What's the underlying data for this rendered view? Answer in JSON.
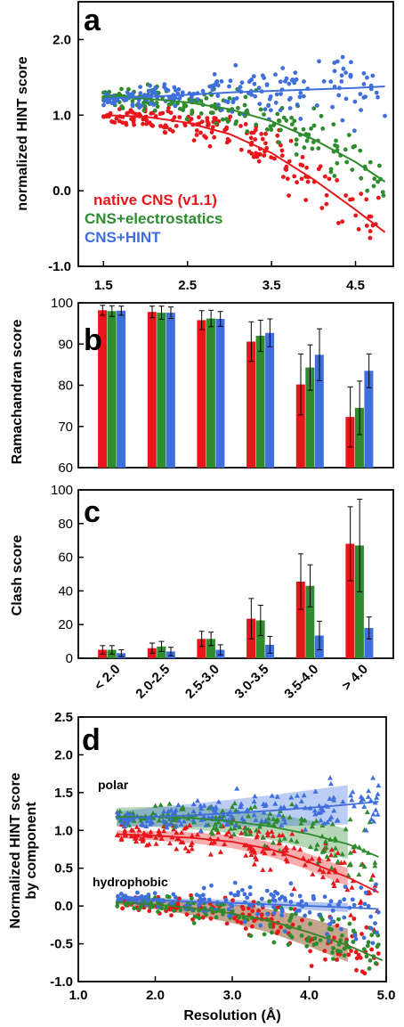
{
  "colors": {
    "native": "#e8161b",
    "electro": "#2e8b2e",
    "hint": "#3f6fdc"
  },
  "chart_data": [
    {
      "id": "a",
      "type": "scatter",
      "panel_label": "a",
      "ylabel": "normalized HINT score",
      "xlim": [
        1.2,
        4.95
      ],
      "ylim": [
        -1.0,
        2.5
      ],
      "xticks": [
        "1.5",
        "2.5",
        "3.5",
        "4.5"
      ],
      "yticks": [
        "-1.0",
        "0.0",
        "1.0",
        "2.0"
      ],
      "legend_position": "bottom-left",
      "series": [
        {
          "name": "native CNS (v1.1)",
          "color": "#e8161b",
          "fit": [
            [
              1.5,
              1.0
            ],
            [
              2.0,
              0.98
            ],
            [
              2.5,
              0.9
            ],
            [
              3.0,
              0.75
            ],
            [
              3.5,
              0.5
            ],
            [
              4.0,
              0.15
            ],
            [
              4.5,
              -0.25
            ],
            [
              4.85,
              -0.55
            ]
          ]
        },
        {
          "name": "CNS+electrostatics",
          "color": "#2e8b2e",
          "fit": [
            [
              1.5,
              1.25
            ],
            [
              2.0,
              1.22
            ],
            [
              2.5,
              1.17
            ],
            [
              3.0,
              1.08
            ],
            [
              3.5,
              0.92
            ],
            [
              4.0,
              0.68
            ],
            [
              4.5,
              0.38
            ],
            [
              4.85,
              0.12
            ]
          ]
        },
        {
          "name": "CNS+HINT",
          "color": "#3f6fdc",
          "fit": [
            [
              1.5,
              1.22
            ],
            [
              2.0,
              1.24
            ],
            [
              2.5,
              1.27
            ],
            [
              3.0,
              1.3
            ],
            [
              3.5,
              1.32
            ],
            [
              4.0,
              1.34
            ],
            [
              4.5,
              1.36
            ],
            [
              4.85,
              1.38
            ]
          ]
        }
      ]
    },
    {
      "id": "b",
      "type": "bar",
      "panel_label": "b",
      "ylabel": "Ramachandran score",
      "ylim": [
        60,
        100
      ],
      "yticks": [
        "60",
        "70",
        "80",
        "90",
        "100"
      ],
      "categories": [
        "< 2.0",
        "2.0-2.5",
        "2.5-3.0",
        "3.0-3.5",
        "3.5-4.0",
        "> 4.0"
      ],
      "series": [
        {
          "name": "native CNS (v1.1)",
          "color": "#e8161b",
          "values": [
            98.2,
            97.8,
            95.8,
            90.6,
            80.2,
            72.3
          ],
          "errors": [
            1.2,
            1.4,
            2.3,
            4.8,
            7.4,
            7.3
          ]
        },
        {
          "name": "CNS+electrostatics",
          "color": "#2e8b2e",
          "values": [
            98.0,
            97.6,
            96.2,
            92.0,
            84.3,
            74.5
          ],
          "errors": [
            1.3,
            1.6,
            2.0,
            3.8,
            5.5,
            6.5
          ]
        },
        {
          "name": "CNS+HINT",
          "color": "#3f6fdc",
          "values": [
            98.1,
            97.6,
            96.1,
            92.7,
            87.4,
            83.5
          ],
          "errors": [
            1.1,
            1.4,
            1.8,
            3.4,
            6.3,
            4.1
          ]
        }
      ]
    },
    {
      "id": "c",
      "type": "bar",
      "panel_label": "c",
      "ylabel": "Clash score",
      "ylim": [
        0,
        100
      ],
      "yticks": [
        "0",
        "20",
        "40",
        "60",
        "80",
        "100"
      ],
      "categories": [
        "< 2.0",
        "2.0-2.5",
        "2.5-3.0",
        "3.0-3.5",
        "3.5-4.0",
        "> 4.0"
      ],
      "series": [
        {
          "name": "native CNS (v1.1)",
          "color": "#e8161b",
          "values": [
            5.0,
            6.0,
            11.5,
            23.5,
            45.5,
            68.0
          ],
          "errors": [
            2.5,
            3.0,
            4.5,
            12.0,
            16.5,
            22.0
          ]
        },
        {
          "name": "CNS+electrostatics",
          "color": "#2e8b2e",
          "values": [
            5.0,
            7.0,
            11.5,
            22.5,
            43.0,
            67.0
          ],
          "errors": [
            2.5,
            3.0,
            4.0,
            9.0,
            12.5,
            27.5
          ]
        },
        {
          "name": "CNS+HINT",
          "color": "#3f6fdc",
          "values": [
            3.0,
            4.0,
            5.0,
            8.0,
            13.5,
            18.0
          ],
          "errors": [
            2.0,
            2.5,
            3.0,
            5.0,
            8.5,
            6.5
          ]
        }
      ]
    },
    {
      "id": "d",
      "type": "scatter",
      "panel_label": "d",
      "ylabel": "Normalized HINT score by component",
      "xlabel": "Resolution (Å)",
      "xlim": [
        1.0,
        5.0
      ],
      "ylim": [
        -1.0,
        2.5
      ],
      "xticks": [
        "1.0",
        "2.0",
        "3.0",
        "4.0",
        "5.0"
      ],
      "yticks": [
        "-1.0",
        "-0.5",
        "0.0",
        "0.5",
        "1.0",
        "1.5",
        "2.0",
        "2.5"
      ],
      "annotations": [
        "polar",
        "hydrophobic"
      ],
      "series": [
        {
          "name": "native CNS (v1.1)",
          "color": "#e8161b",
          "polar_fit": [
            [
              1.5,
              0.95
            ],
            [
              2.0,
              0.93
            ],
            [
              2.5,
              0.9
            ],
            [
              3.0,
              0.85
            ],
            [
              3.5,
              0.75
            ],
            [
              4.0,
              0.58
            ],
            [
              4.5,
              0.38
            ],
            [
              4.9,
              0.18
            ]
          ],
          "hydrophobic_fit": [
            [
              1.5,
              0.05
            ],
            [
              2.0,
              0.02
            ],
            [
              2.5,
              -0.03
            ],
            [
              3.0,
              -0.1
            ],
            [
              3.5,
              -0.2
            ],
            [
              4.0,
              -0.35
            ],
            [
              4.5,
              -0.52
            ],
            [
              4.95,
              -0.72
            ]
          ]
        },
        {
          "name": "CNS+electrostatics",
          "color": "#2e8b2e",
          "polar_fit": [
            [
              1.5,
              1.18
            ],
            [
              2.0,
              1.18
            ],
            [
              2.5,
              1.16
            ],
            [
              3.0,
              1.12
            ],
            [
              3.5,
              1.05
            ],
            [
              4.0,
              0.95
            ],
            [
              4.5,
              0.82
            ],
            [
              4.9,
              0.65
            ]
          ],
          "hydrophobic_fit": [
            [
              1.5,
              0.05
            ],
            [
              2.0,
              0.02
            ],
            [
              2.5,
              -0.03
            ],
            [
              3.0,
              -0.1
            ],
            [
              3.5,
              -0.2
            ],
            [
              4.0,
              -0.35
            ],
            [
              4.5,
              -0.52
            ],
            [
              4.95,
              -0.72
            ]
          ]
        },
        {
          "name": "CNS+HINT",
          "color": "#3f6fdc",
          "polar_fit": [
            [
              1.5,
              1.15
            ],
            [
              2.0,
              1.18
            ],
            [
              2.5,
              1.2
            ],
            [
              3.0,
              1.23
            ],
            [
              3.5,
              1.26
            ],
            [
              4.0,
              1.3
            ],
            [
              4.5,
              1.34
            ],
            [
              4.9,
              1.38
            ]
          ],
          "hydrophobic_fit": [
            [
              1.5,
              0.1
            ],
            [
              2.0,
              0.08
            ],
            [
              2.5,
              0.06
            ],
            [
              3.0,
              0.04
            ],
            [
              3.5,
              0.02
            ],
            [
              4.0,
              0.0
            ],
            [
              4.5,
              -0.02
            ],
            [
              4.9,
              -0.04
            ]
          ]
        }
      ]
    }
  ]
}
